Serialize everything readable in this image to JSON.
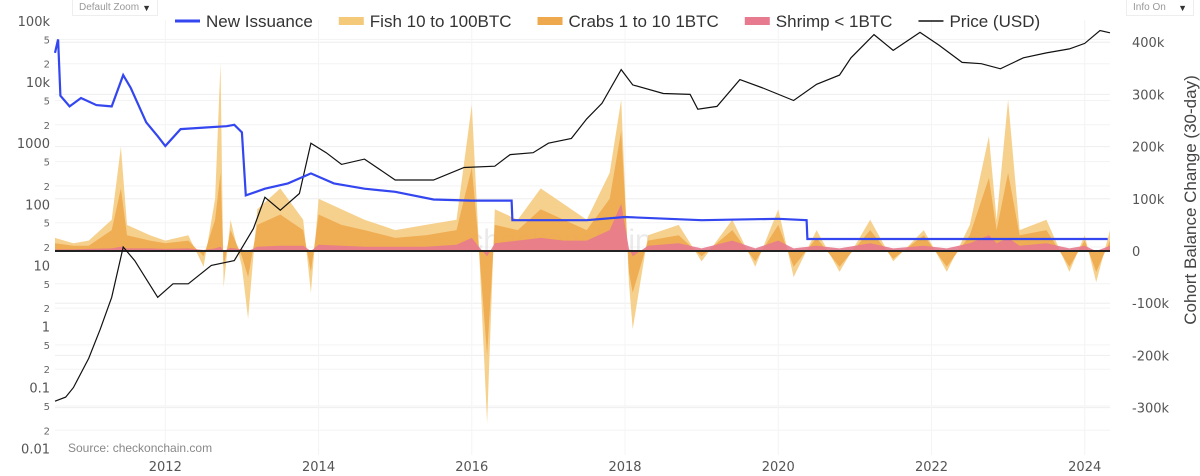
{
  "controls": {
    "zoom_label": "Default Zoom",
    "info_label": "Info On"
  },
  "source": "Source: checkonchain.com",
  "watermark": "checkonchain",
  "colors": {
    "issuance": "#3346f0",
    "fish": "#f5c97a",
    "crabs": "#eea94e",
    "shrimp": "#e77a8f",
    "price": "#111111",
    "zero": "#222222"
  },
  "chart_data": {
    "type": "area",
    "title": "",
    "legend": [
      "New Issuance",
      "Fish 10 to 100BTC",
      "Crabs 1 to 10 1BTC",
      "Shrimp < 1BTC",
      "Price (USD)"
    ],
    "legend_placement": "top",
    "xlabel": "",
    "ylabel_left": "",
    "ylabel_right": "Cohort Balance Change (30-day)",
    "x_ticks": [
      "2012",
      "2014",
      "2016",
      "2018",
      "2020",
      "2022",
      "2024"
    ],
    "xlim": [
      2010.56,
      2024.33
    ],
    "y_left": {
      "scale": "log",
      "range": [
        0.01,
        100000
      ],
      "tick_labels": [
        "100k",
        "10k",
        "1000",
        "100",
        "10",
        "1",
        "0.1",
        "0.01"
      ],
      "minor_labels": [
        "5",
        "2"
      ]
    },
    "y_right": {
      "scale": "linear",
      "range": [
        -350000,
        450000
      ],
      "tick_labels": [
        "400k",
        "300k",
        "200k",
        "100k",
        "0",
        "-100k",
        "-200k",
        "-300k"
      ]
    },
    "price": [
      [
        2010.56,
        0.06
      ],
      [
        2010.7,
        0.07
      ],
      [
        2010.8,
        0.1
      ],
      [
        2011.0,
        0.3
      ],
      [
        2011.15,
        0.9
      ],
      [
        2011.3,
        3
      ],
      [
        2011.45,
        20
      ],
      [
        2011.6,
        12
      ],
      [
        2011.9,
        3
      ],
      [
        2012.1,
        5
      ],
      [
        2012.3,
        5
      ],
      [
        2012.6,
        10
      ],
      [
        2012.9,
        12
      ],
      [
        2013.15,
        40
      ],
      [
        2013.3,
        130
      ],
      [
        2013.5,
        80
      ],
      [
        2013.75,
        150
      ],
      [
        2013.9,
        1000
      ],
      [
        2014.1,
        700
      ],
      [
        2014.3,
        450
      ],
      [
        2014.6,
        550
      ],
      [
        2015.0,
        250
      ],
      [
        2015.5,
        250
      ],
      [
        2015.9,
        400
      ],
      [
        2016.3,
        420
      ],
      [
        2016.5,
        650
      ],
      [
        2016.8,
        700
      ],
      [
        2017.0,
        1000
      ],
      [
        2017.3,
        1200
      ],
      [
        2017.5,
        2500
      ],
      [
        2017.7,
        4500
      ],
      [
        2017.95,
        16000
      ],
      [
        2018.1,
        9000
      ],
      [
        2018.5,
        6500
      ],
      [
        2018.85,
        6300
      ],
      [
        2018.95,
        3600
      ],
      [
        2019.2,
        4000
      ],
      [
        2019.5,
        11000
      ],
      [
        2019.8,
        8000
      ],
      [
        2020.2,
        5000
      ],
      [
        2020.5,
        9200
      ],
      [
        2020.8,
        13000
      ],
      [
        2020.95,
        25000
      ],
      [
        2021.25,
        60000
      ],
      [
        2021.5,
        33000
      ],
      [
        2021.85,
        65000
      ],
      [
        2022.1,
        40000
      ],
      [
        2022.4,
        21000
      ],
      [
        2022.65,
        20000
      ],
      [
        2022.9,
        16500
      ],
      [
        2023.2,
        25000
      ],
      [
        2023.5,
        30000
      ],
      [
        2023.8,
        35000
      ],
      [
        2024.0,
        43000
      ],
      [
        2024.2,
        70000
      ],
      [
        2024.33,
        64000
      ]
    ],
    "new_issuance": [
      [
        2010.56,
        30000
      ],
      [
        2010.6,
        50000
      ],
      [
        2010.63,
        6000
      ],
      [
        2010.75,
        4000
      ],
      [
        2010.9,
        5500
      ],
      [
        2011.1,
        4200
      ],
      [
        2011.3,
        4000
      ],
      [
        2011.45,
        13000
      ],
      [
        2011.55,
        8000
      ],
      [
        2011.75,
        2200
      ],
      [
        2011.9,
        1300
      ],
      [
        2012.0,
        900
      ],
      [
        2012.2,
        1700
      ],
      [
        2012.5,
        1800
      ],
      [
        2012.8,
        1900
      ],
      [
        2012.9,
        2000
      ],
      [
        2013.0,
        1500
      ],
      [
        2013.05,
        140
      ],
      [
        2013.3,
        180
      ],
      [
        2013.6,
        220
      ],
      [
        2013.9,
        320
      ],
      [
        2014.2,
        220
      ],
      [
        2014.6,
        180
      ],
      [
        2015.0,
        160
      ],
      [
        2015.5,
        120
      ],
      [
        2016.0,
        115
      ],
      [
        2016.52,
        115
      ],
      [
        2016.53,
        55
      ],
      [
        2017.5,
        55
      ],
      [
        2018.0,
        62
      ],
      [
        2019.0,
        55
      ],
      [
        2020.0,
        58
      ],
      [
        2020.37,
        55
      ],
      [
        2020.38,
        27
      ],
      [
        2021.0,
        27
      ],
      [
        2024.3,
        27
      ]
    ],
    "cohorts_columns": [
      "year",
      "fish",
      "crabs",
      "shrimp"
    ],
    "cohorts": [
      [
        2010.56,
        25000,
        15000,
        3000
      ],
      [
        2010.8,
        15000,
        10000,
        3000
      ],
      [
        2011.0,
        20000,
        10000,
        4000
      ],
      [
        2011.3,
        60000,
        40000,
        5000
      ],
      [
        2011.42,
        200000,
        120000,
        8000
      ],
      [
        2011.5,
        50000,
        30000,
        5000
      ],
      [
        2011.8,
        30000,
        20000,
        5000
      ],
      [
        2012.0,
        20000,
        15000,
        4000
      ],
      [
        2012.3,
        30000,
        20000,
        5000
      ],
      [
        2012.5,
        -30000,
        -10000,
        2000
      ],
      [
        2012.65,
        100000,
        60000,
        5000
      ],
      [
        2012.72,
        360000,
        150000,
        8000
      ],
      [
        2012.76,
        -70000,
        -30000,
        0
      ],
      [
        2012.85,
        60000,
        40000,
        6000
      ],
      [
        2013.0,
        -30000,
        -10000,
        3000
      ],
      [
        2013.08,
        -130000,
        -50000,
        0
      ],
      [
        2013.2,
        80000,
        50000,
        8000
      ],
      [
        2013.5,
        120000,
        70000,
        10000
      ],
      [
        2013.8,
        60000,
        40000,
        10000
      ],
      [
        2013.9,
        -80000,
        -40000,
        0
      ],
      [
        2014.0,
        100000,
        70000,
        12000
      ],
      [
        2014.3,
        80000,
        50000,
        10000
      ],
      [
        2014.6,
        60000,
        40000,
        8000
      ],
      [
        2015.0,
        40000,
        25000,
        8000
      ],
      [
        2015.4,
        50000,
        30000,
        8000
      ],
      [
        2015.8,
        60000,
        40000,
        12000
      ],
      [
        2016.0,
        280000,
        160000,
        25000
      ],
      [
        2016.08,
        50000,
        30000,
        10000
      ],
      [
        2016.2,
        -330000,
        -200000,
        -10000
      ],
      [
        2016.3,
        80000,
        50000,
        15000
      ],
      [
        2016.6,
        60000,
        40000,
        20000
      ],
      [
        2016.9,
        120000,
        80000,
        25000
      ],
      [
        2017.2,
        90000,
        60000,
        20000
      ],
      [
        2017.5,
        60000,
        40000,
        20000
      ],
      [
        2017.8,
        150000,
        100000,
        40000
      ],
      [
        2017.95,
        290000,
        230000,
        90000
      ],
      [
        2018.05,
        -60000,
        -40000,
        5000
      ],
      [
        2018.1,
        -150000,
        -80000,
        -10000
      ],
      [
        2018.3,
        30000,
        20000,
        10000
      ],
      [
        2018.7,
        50000,
        30000,
        15000
      ],
      [
        2019.0,
        -20000,
        -10000,
        5000
      ],
      [
        2019.4,
        60000,
        40000,
        20000
      ],
      [
        2019.7,
        -30000,
        -20000,
        5000
      ],
      [
        2020.0,
        80000,
        50000,
        20000
      ],
      [
        2020.2,
        -50000,
        -30000,
        5000
      ],
      [
        2020.5,
        40000,
        25000,
        10000
      ],
      [
        2020.8,
        -40000,
        -30000,
        5000
      ],
      [
        2021.2,
        60000,
        40000,
        15000
      ],
      [
        2021.5,
        -20000,
        -15000,
        5000
      ],
      [
        2021.9,
        40000,
        30000,
        10000
      ],
      [
        2022.2,
        -40000,
        -30000,
        5000
      ],
      [
        2022.5,
        50000,
        30000,
        15000
      ],
      [
        2022.75,
        220000,
        140000,
        30000
      ],
      [
        2022.85,
        60000,
        40000,
        15000
      ],
      [
        2023.0,
        290000,
        150000,
        25000
      ],
      [
        2023.15,
        40000,
        30000,
        10000
      ],
      [
        2023.5,
        60000,
        40000,
        15000
      ],
      [
        2023.8,
        -40000,
        -30000,
        5000
      ],
      [
        2024.0,
        30000,
        20000,
        10000
      ],
      [
        2024.15,
        -60000,
        -40000,
        0
      ],
      [
        2024.33,
        40000,
        20000,
        10000
      ]
    ]
  }
}
